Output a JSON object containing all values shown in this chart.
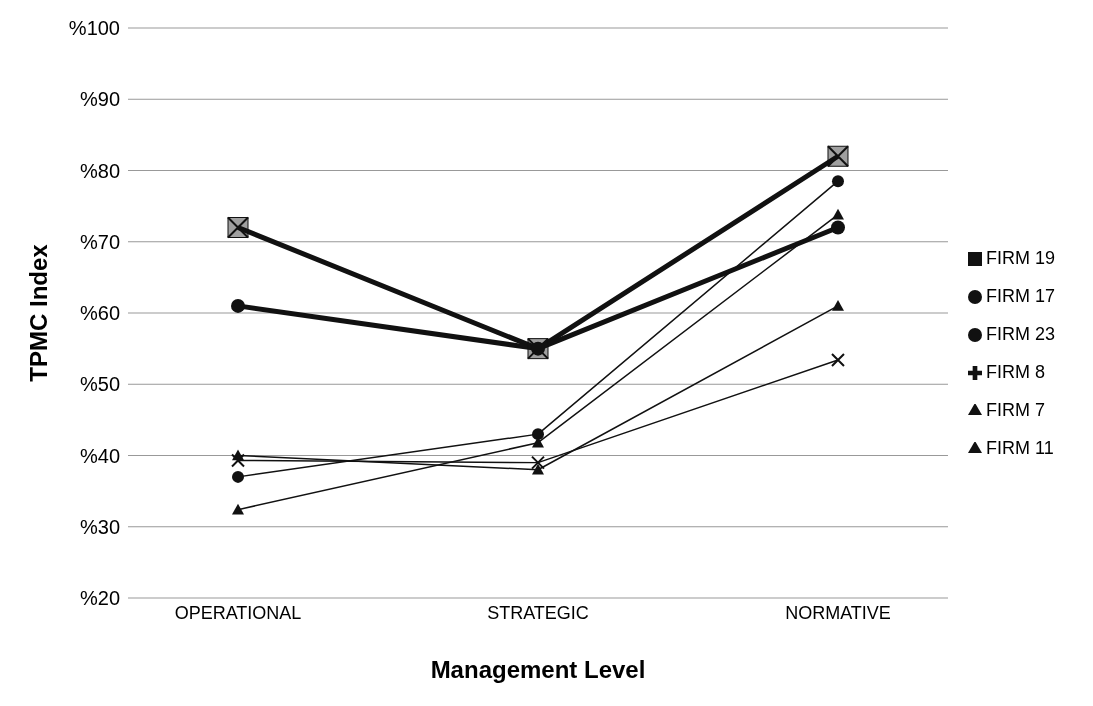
{
  "chart_data": {
    "type": "line",
    "xlabel": "Management Level",
    "ylabel": "TPMC Index",
    "categories": [
      "OPERATIONAL",
      "STRATEGIC",
      "NORMATIVE"
    ],
    "series": [
      {
        "name": "FIRM 19",
        "color": "#111111",
        "marker": "square",
        "values": [
          72,
          55,
          82
        ]
      },
      {
        "name": "FIRM 17",
        "color": "#111111",
        "marker": "circle",
        "values": [
          61,
          55,
          72
        ]
      },
      {
        "name": "FIRM 23",
        "color": "#111111",
        "marker": "circle",
        "values": [
          37,
          43,
          78.5
        ]
      },
      {
        "name": "FIRM 8",
        "color": "#111111",
        "marker": "cross",
        "values": [
          39.3,
          39,
          53.4
        ]
      },
      {
        "name": "FIRM 7",
        "color": "#111111",
        "marker": "triangle",
        "values": [
          40,
          38,
          61
        ]
      },
      {
        "name": "FIRM 11",
        "color": "#111111",
        "marker": "triangle",
        "values": [
          32.4,
          41.8,
          73.8
        ]
      }
    ],
    "ylim": [
      20,
      100
    ],
    "yticks": [
      {
        "value": 20,
        "label": "%20"
      },
      {
        "value": 30,
        "label": "%30"
      },
      {
        "value": 40,
        "label": "%40"
      },
      {
        "value": 50,
        "label": "%50"
      },
      {
        "value": 60,
        "label": "%60"
      },
      {
        "value": 70,
        "label": "%70"
      },
      {
        "value": 80,
        "label": "%80"
      },
      {
        "value": 90,
        "label": "%90"
      },
      {
        "value": 100,
        "label": "%100"
      }
    ],
    "grid": "y",
    "legend": "right",
    "line_style": "solid"
  }
}
